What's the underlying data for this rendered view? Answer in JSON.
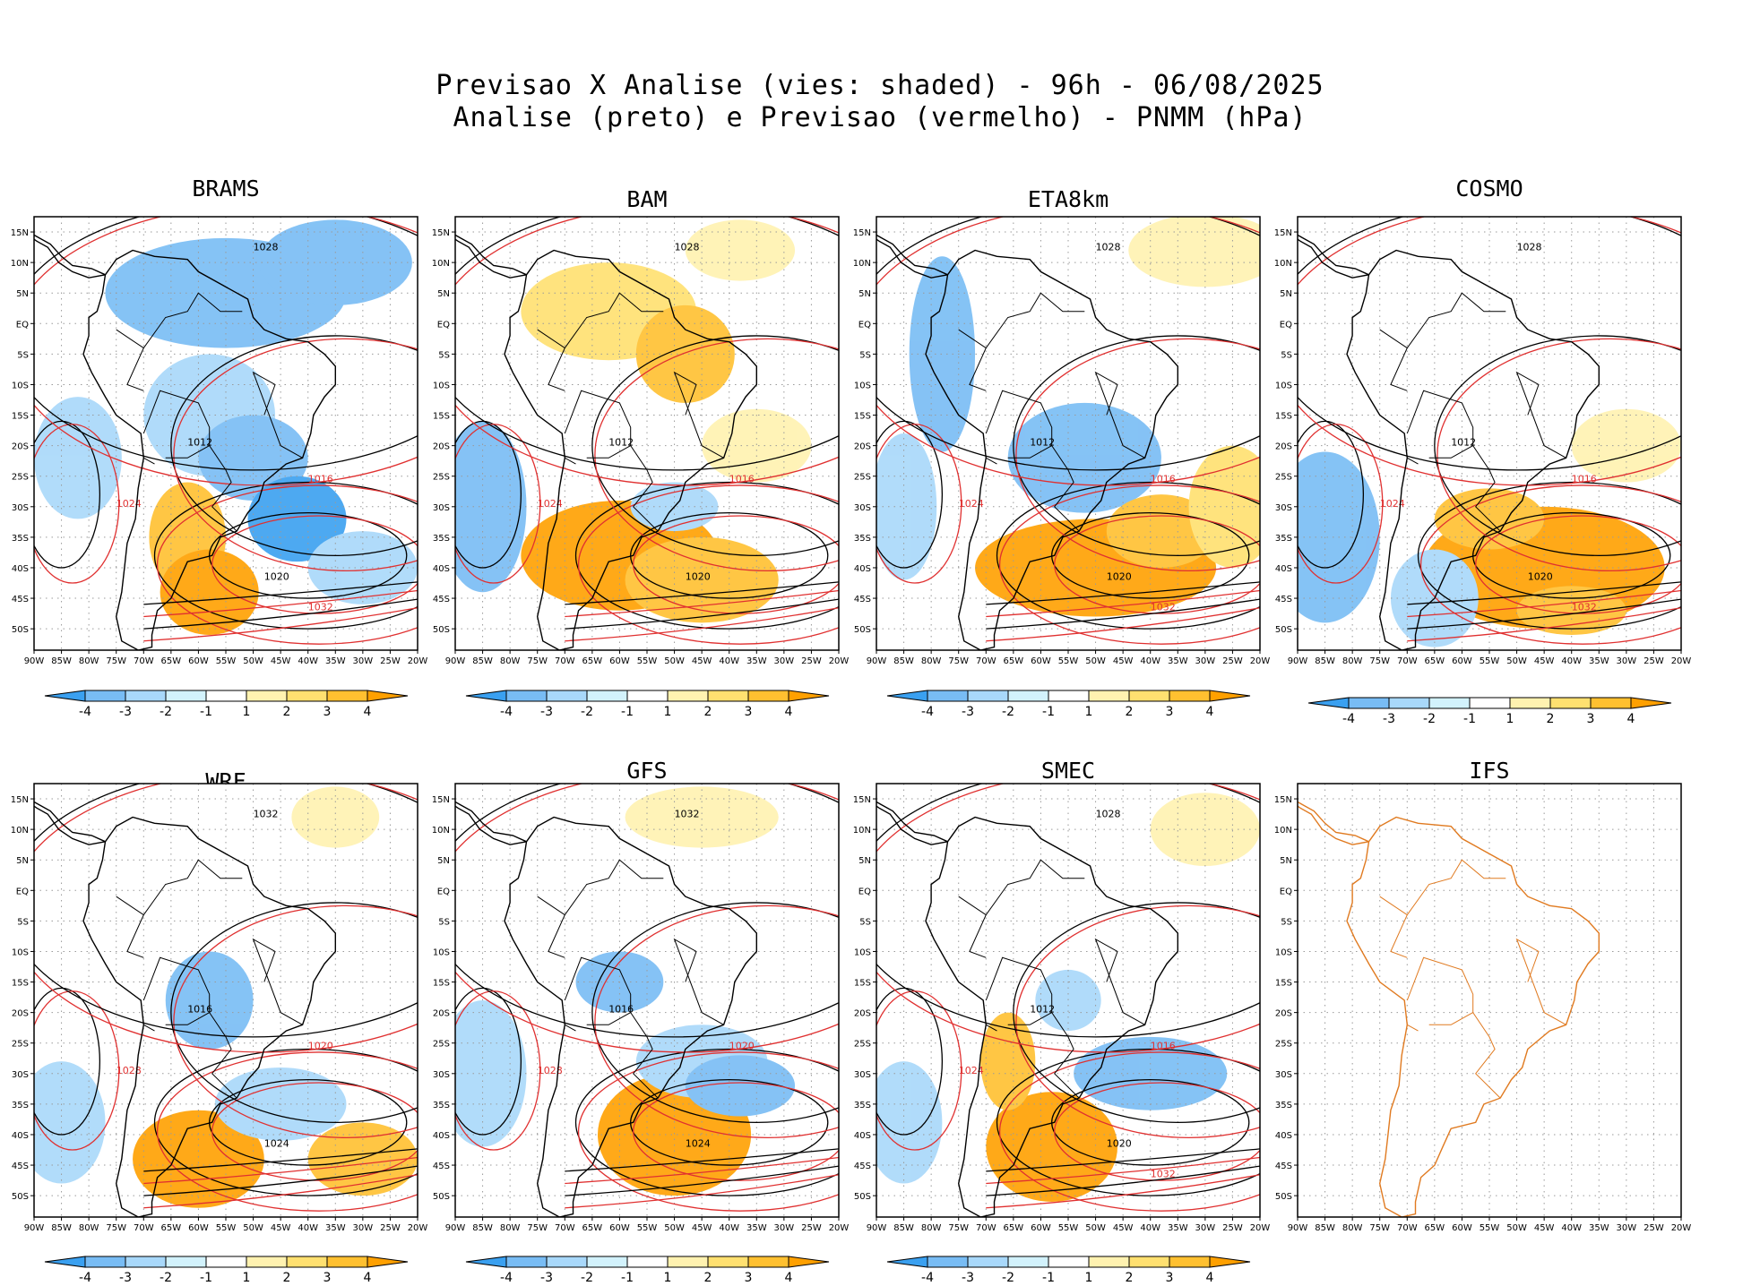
{
  "header": {
    "title_line1": "Previsao X Analise (vies: shaded) - 96h - 06/08/2025",
    "title_line2": "Analise (preto) e Previsao (vermelho) - PNMM (hPa)"
  },
  "colors": {
    "analysis_contour": "#000000",
    "forecast_contour": "#e03030",
    "ifs_coast": "#e07a20",
    "neg4": "#3aa0f0",
    "neg3": "#78bcf4",
    "neg2": "#a8d8fa",
    "neg1": "#d2f2fc",
    "zero": "#ffffff",
    "pos1": "#fff2b0",
    "pos2": "#ffe070",
    "pos3": "#ffc030",
    "pos4": "#ffa000"
  },
  "axes": {
    "lat_labels": [
      "15N",
      "10N",
      "5N",
      "EQ",
      "5S",
      "10S",
      "15S",
      "20S",
      "25S",
      "30S",
      "35S",
      "40S",
      "45S",
      "50S"
    ],
    "lon_labels": [
      "90W",
      "85W",
      "80W",
      "75W",
      "70W",
      "65W",
      "60W",
      "55W",
      "50W",
      "45W",
      "40W",
      "35W",
      "30W",
      "25W",
      "20W"
    ]
  },
  "colorbar": {
    "labels": [
      "-4",
      "-3",
      "-2",
      "-1",
      "1",
      "2",
      "3",
      "4"
    ]
  },
  "panels": [
    {
      "name": "BRAMS",
      "isobars": [
        "1012",
        "1016",
        "1020",
        "1024",
        "1028",
        "1032"
      ]
    },
    {
      "name": "BAM",
      "isobars": [
        "1012",
        "1016",
        "1020",
        "1024",
        "1028"
      ]
    },
    {
      "name": "ETA8km",
      "isobars": [
        "1012",
        "1016",
        "1020",
        "1024",
        "1028",
        "1032"
      ]
    },
    {
      "name": "COSMO",
      "isobars": [
        "1012",
        "1016",
        "1020",
        "1024",
        "1028",
        "1032"
      ]
    },
    {
      "name": "WRF",
      "isobars": [
        "1016",
        "1020",
        "1024",
        "1028",
        "1032"
      ]
    },
    {
      "name": "GFS",
      "isobars": [
        "1016",
        "1020",
        "1024",
        "1028",
        "1032"
      ]
    },
    {
      "name": "SMEC",
      "isobars": [
        "1012",
        "1016",
        "1020",
        "1024",
        "1028",
        "1032"
      ]
    },
    {
      "name": "IFS",
      "isobars": []
    }
  ]
}
